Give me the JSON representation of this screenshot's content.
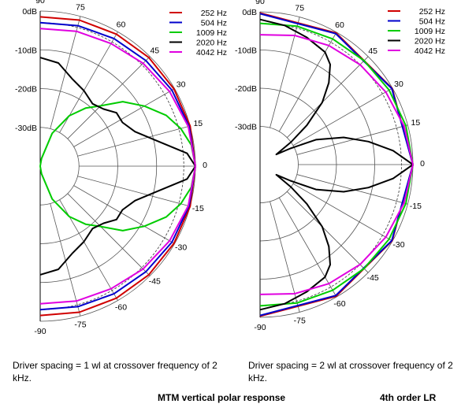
{
  "chart_data": [
    {
      "type": "polar",
      "plot": "left",
      "angles_deg": [
        90,
        75,
        60,
        45,
        30,
        15,
        0,
        -15,
        -30,
        -45,
        -60,
        -75,
        -90
      ],
      "angle_labels": [
        "90",
        "75",
        "60",
        "45",
        "30",
        "15",
        "0",
        "-15",
        "-30",
        "-45",
        "-60",
        "-75",
        "-90"
      ],
      "radial_labels": [
        "0dB",
        "-10dB",
        "-20dB",
        "-30dB"
      ],
      "radial_range_db": [
        -40,
        0
      ],
      "legend_placement": "top-right",
      "caption": "Driver spacing = 1 wl at crossover frequency of 2 kHz.",
      "series": [
        {
          "name": "252 Hz",
          "color": "#d00000",
          "points": [
            [
              90,
              -1.5
            ],
            [
              75,
              -1
            ],
            [
              60,
              -0.7
            ],
            [
              45,
              -0.4
            ],
            [
              30,
              -0.2
            ],
            [
              15,
              0
            ],
            [
              0,
              0
            ],
            [
              -15,
              0
            ],
            [
              -30,
              -0.2
            ],
            [
              -45,
              -0.4
            ],
            [
              -60,
              -0.7
            ],
            [
              -75,
              -1
            ],
            [
              -90,
              -1.5
            ]
          ]
        },
        {
          "name": "504 Hz",
          "color": "#0000cc",
          "points": [
            [
              90,
              -3
            ],
            [
              75,
              -2.5
            ],
            [
              60,
              -2
            ],
            [
              45,
              -1.5
            ],
            [
              30,
              -0.8
            ],
            [
              15,
              -0.3
            ],
            [
              0,
              0
            ],
            [
              -15,
              -0.3
            ],
            [
              -30,
              -0.8
            ],
            [
              -45,
              -1.5
            ],
            [
              -60,
              -2
            ],
            [
              -75,
              -2.5
            ],
            [
              -90,
              -3
            ]
          ]
        },
        {
          "name": "1009 Hz",
          "color": "#00cc00",
          "points": [
            [
              90,
              -40
            ],
            [
              80,
              -38
            ],
            [
              70,
              -31
            ],
            [
              60,
              -25
            ],
            [
              52,
              -21
            ],
            [
              45,
              -18
            ],
            [
              38,
              -13
            ],
            [
              30,
              -9
            ],
            [
              22,
              -5
            ],
            [
              15,
              -2.5
            ],
            [
              8,
              -0.7
            ],
            [
              0,
              0
            ],
            [
              -8,
              -0.7
            ],
            [
              -15,
              -2.5
            ],
            [
              -22,
              -5
            ],
            [
              -30,
              -9
            ],
            [
              -38,
              -13
            ],
            [
              -45,
              -18
            ],
            [
              -52,
              -21
            ],
            [
              -60,
              -25
            ],
            [
              -70,
              -31
            ],
            [
              -80,
              -38
            ],
            [
              -90,
              -40
            ]
          ]
        },
        {
          "name": "2020 Hz",
          "color": "#000000",
          "points": [
            [
              90,
              -12
            ],
            [
              80,
              -13
            ],
            [
              70,
              -16
            ],
            [
              60,
              -17.5
            ],
            [
              50,
              -19
            ],
            [
              42,
              -18
            ],
            [
              35,
              -16
            ],
            [
              28,
              -16
            ],
            [
              20,
              -14
            ],
            [
              12,
              -9
            ],
            [
              5,
              -2
            ],
            [
              0,
              0
            ],
            [
              -5,
              -2
            ],
            [
              -12,
              -9
            ],
            [
              -20,
              -14
            ],
            [
              -28,
              -16
            ],
            [
              -35,
              -16
            ],
            [
              -42,
              -18
            ],
            [
              -50,
              -19
            ],
            [
              -60,
              -17.5
            ],
            [
              -70,
              -16
            ],
            [
              -80,
              -13
            ],
            [
              -90,
              -12
            ]
          ]
        },
        {
          "name": "4042 Hz",
          "color": "#e000e0",
          "points": [
            [
              90,
              -4.5
            ],
            [
              75,
              -4
            ],
            [
              60,
              -3.5
            ],
            [
              45,
              -2.5
            ],
            [
              30,
              -1.5
            ],
            [
              15,
              -0.5
            ],
            [
              0,
              0
            ],
            [
              -15,
              -0.5
            ],
            [
              -30,
              -1.5
            ],
            [
              -45,
              -2.5
            ],
            [
              -60,
              -3.5
            ],
            [
              -75,
              -4
            ],
            [
              -90,
              -4.5
            ]
          ]
        }
      ]
    },
    {
      "type": "polar",
      "plot": "right",
      "angles_deg": [
        90,
        75,
        60,
        45,
        30,
        15,
        0,
        -15,
        -30,
        -45,
        -60,
        -75,
        -90
      ],
      "angle_labels": [
        "90",
        "75",
        "60",
        "45",
        "30",
        "15",
        "0",
        "-15",
        "-30",
        "-45",
        "-60",
        "-75",
        "-90"
      ],
      "radial_labels": [
        "0dB",
        "-10dB",
        "-20dB",
        "-30dB"
      ],
      "radial_range_db": [
        -40,
        0
      ],
      "legend_placement": "top-right",
      "caption": "Driver spacing = 2 wl at crossover frequency of 2 kHz.",
      "series": [
        {
          "name": "252 Hz",
          "color": "#d00000",
          "points": [
            [
              90,
              -0.3
            ],
            [
              60,
              -0.2
            ],
            [
              30,
              -0.1
            ],
            [
              0,
              0
            ],
            [
              -30,
              -0.1
            ],
            [
              -60,
              -0.2
            ],
            [
              -90,
              -0.3
            ]
          ]
        },
        {
          "name": "504 Hz",
          "color": "#0000cc",
          "points": [
            [
              90,
              -0.5
            ],
            [
              60,
              -0.4
            ],
            [
              30,
              -0.2
            ],
            [
              0,
              0
            ],
            [
              -30,
              -0.2
            ],
            [
              -60,
              -0.4
            ],
            [
              -90,
              -0.5
            ]
          ]
        },
        {
          "name": "1009 Hz",
          "color": "#00cc00",
          "points": [
            [
              90,
              -3
            ],
            [
              75,
              -2.5
            ],
            [
              60,
              -2
            ],
            [
              45,
              -1.5
            ],
            [
              30,
              -1
            ],
            [
              15,
              -0.5
            ],
            [
              0,
              0
            ],
            [
              -15,
              -0.5
            ],
            [
              -30,
              -1
            ],
            [
              -45,
              -1.5
            ],
            [
              -60,
              -2
            ],
            [
              -75,
              -2.5
            ],
            [
              -90,
              -3
            ]
          ]
        },
        {
          "name": "2020 Hz",
          "color": "#000000",
          "points": [
            [
              90,
              -2
            ],
            [
              80,
              -3
            ],
            [
              70,
              -4.5
            ],
            [
              60,
              -6
            ],
            [
              55,
              -8
            ],
            [
              50,
              -12
            ],
            [
              45,
              -17
            ],
            [
              40,
              -24
            ],
            [
              36,
              -30
            ],
            [
              32,
              -35
            ],
            [
              28,
              -31
            ],
            [
              24,
              -24
            ],
            [
              18,
              -17
            ],
            [
              12,
              -11
            ],
            [
              6,
              -5
            ],
            [
              0,
              0
            ],
            [
              -6,
              -5
            ],
            [
              -12,
              -11
            ],
            [
              -18,
              -17
            ],
            [
              -24,
              -24
            ],
            [
              -28,
              -31
            ],
            [
              -32,
              -35
            ],
            [
              -36,
              -30
            ],
            [
              -40,
              -24
            ],
            [
              -45,
              -17
            ],
            [
              -50,
              -12
            ],
            [
              -55,
              -8
            ],
            [
              -60,
              -6
            ],
            [
              -70,
              -4.5
            ],
            [
              -80,
              -3
            ],
            [
              -90,
              -2
            ]
          ]
        },
        {
          "name": "4042 Hz",
          "color": "#e000e0",
          "points": [
            [
              90,
              -6
            ],
            [
              75,
              -5
            ],
            [
              60,
              -4
            ],
            [
              45,
              -3
            ],
            [
              30,
              -2
            ],
            [
              15,
              -1
            ],
            [
              0,
              0
            ],
            [
              -15,
              -1
            ],
            [
              -30,
              -2
            ],
            [
              -45,
              -3
            ],
            [
              -60,
              -4
            ],
            [
              -75,
              -5
            ],
            [
              -90,
              -6
            ]
          ]
        }
      ]
    }
  ],
  "footer": {
    "title": "MTM vertical polar response",
    "filter": "4th order LR"
  }
}
